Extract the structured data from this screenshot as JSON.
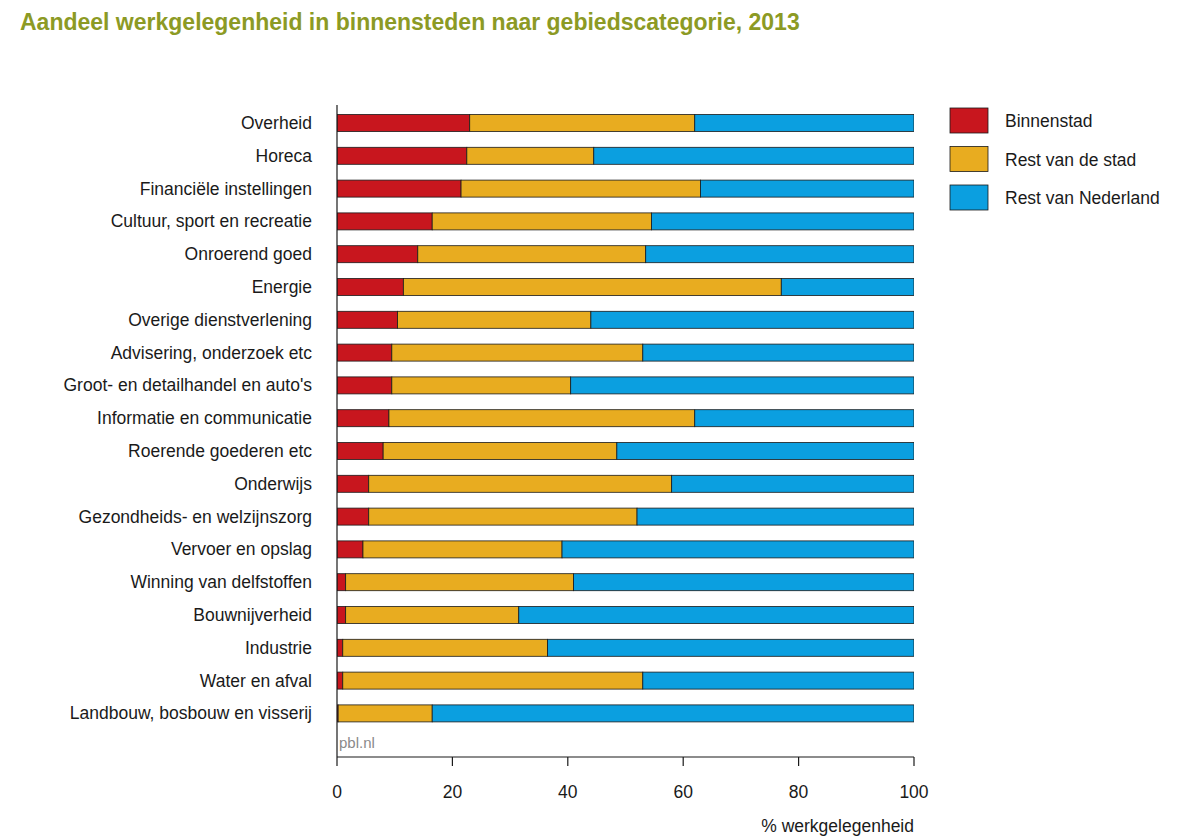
{
  "chart_data": {
    "type": "bar",
    "orientation": "horizontal",
    "stacked": true,
    "title": "Aandeel werkgelegenheid in binnensteden naar gebiedscategorie, 2013",
    "xlabel": "% werkgelegenheid",
    "source": "pbl.nl",
    "legend": "right",
    "grid": false,
    "xlim": [
      0,
      100
    ],
    "xticks": [
      0,
      20,
      40,
      60,
      80,
      100
    ],
    "categories": [
      "Overheid",
      "Horeca",
      "Financiële instellingen",
      "Cultuur, sport en recreatie",
      "Onroerend goed",
      "Energie",
      "Overige dienstverlening",
      "Advisering, onderzoek etc",
      "Groot- en detailhandel en auto's",
      "Informatie en communicatie",
      "Roerende goederen etc",
      "Onderwijs",
      "Gezondheids- en welzijnszorg",
      "Vervoer en opslag",
      "Winning van delfstoffen",
      "Bouwnijverheid",
      "Industrie",
      "Water en afval",
      "Landbouw, bosbouw en visserij"
    ],
    "series": [
      {
        "name": "Binnenstad",
        "color": "#c8161e",
        "values": [
          23,
          22.5,
          21.5,
          16.5,
          14,
          11.5,
          10.5,
          9.5,
          9.5,
          9,
          8,
          5.5,
          5.5,
          4.5,
          1.5,
          1.5,
          1,
          1,
          0.2
        ]
      },
      {
        "name": "Rest van de stad",
        "color": "#e8ac20",
        "values": [
          39,
          22,
          41.5,
          38,
          39.5,
          65.5,
          33.5,
          43.5,
          31,
          53,
          40.5,
          52.5,
          46.5,
          34.5,
          39.5,
          30,
          35.5,
          52,
          16.3
        ]
      },
      {
        "name": "Rest van Nederland",
        "color": "#0b9fe0",
        "values": [
          38,
          55.5,
          37,
          45.5,
          46.5,
          23,
          56,
          47,
          59.5,
          38,
          51.5,
          42,
          48,
          61,
          59,
          68.5,
          63.5,
          47,
          83.5
        ]
      }
    ]
  }
}
